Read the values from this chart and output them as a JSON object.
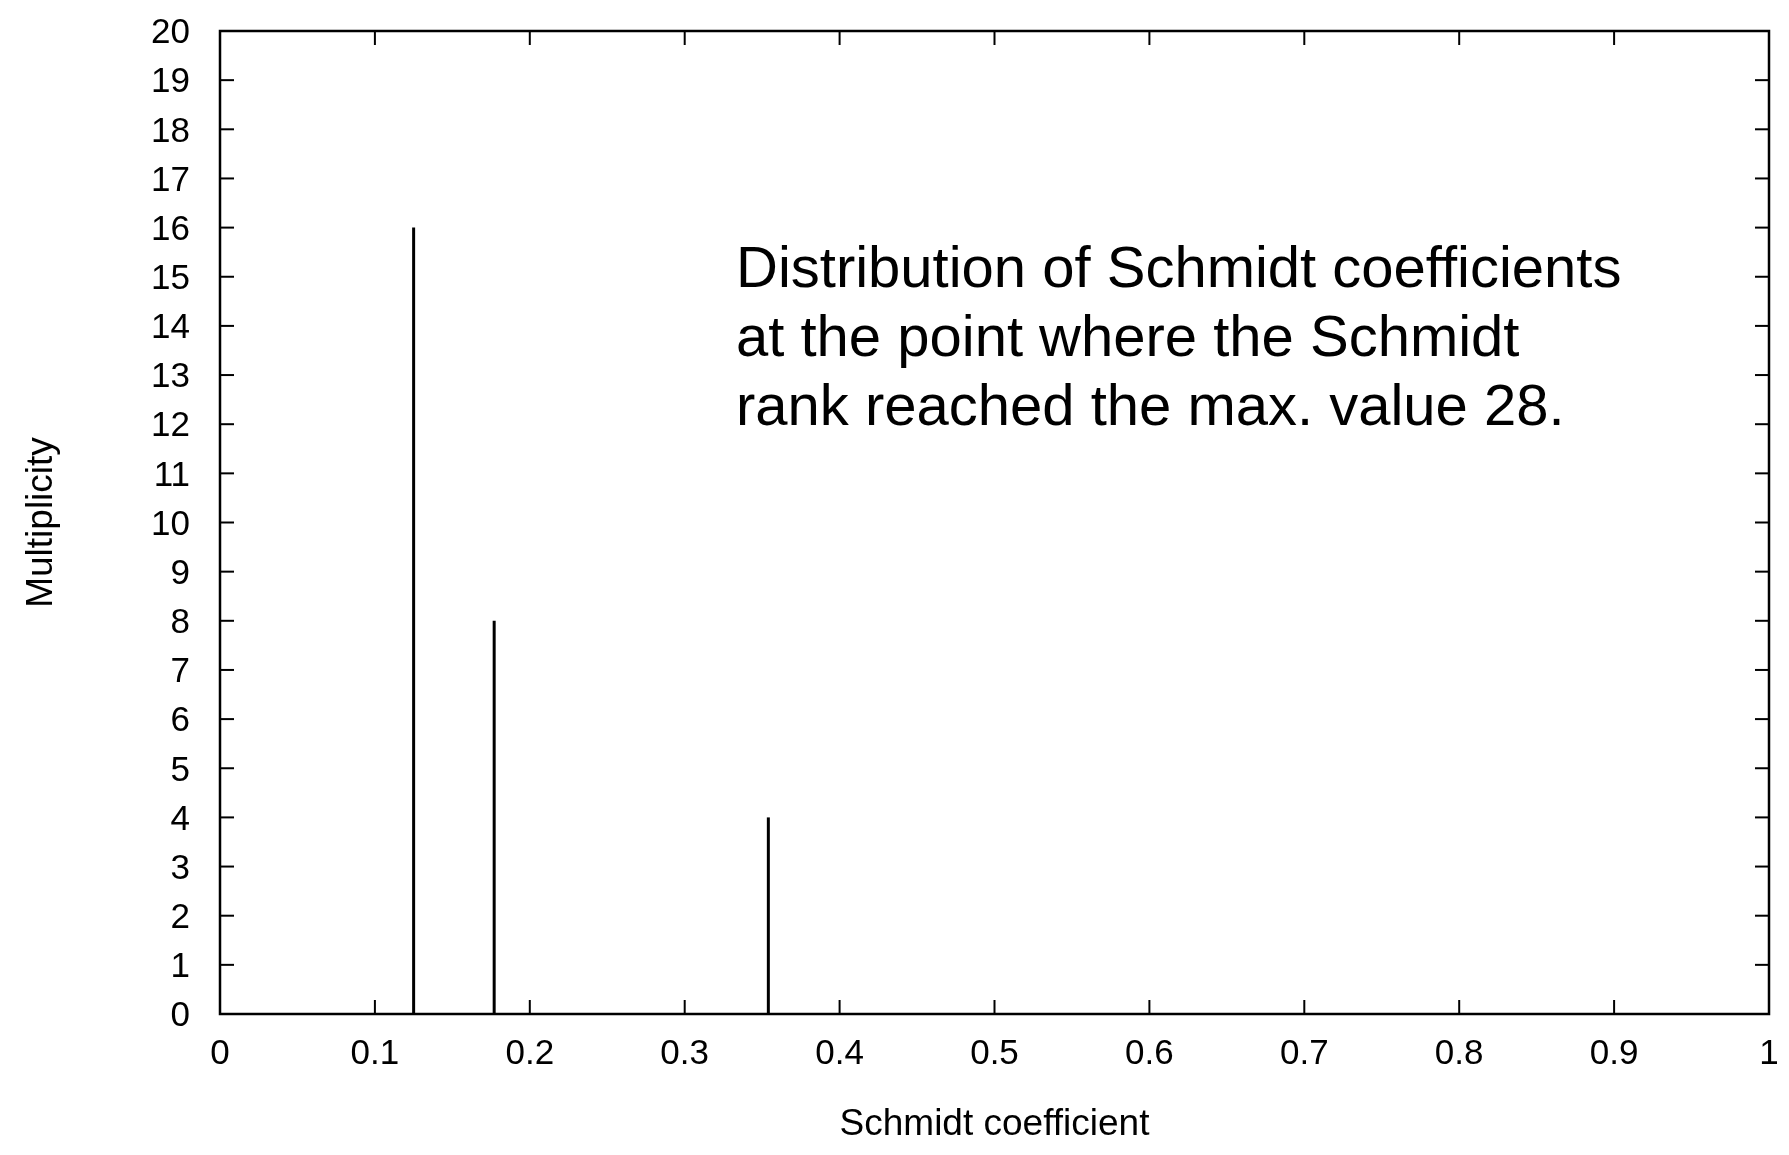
{
  "chart_data": {
    "type": "bar",
    "xlabel": "Schmidt coefficient",
    "ylabel": "Multiplicity",
    "x": [
      0.125,
      0.177,
      0.354
    ],
    "values": [
      16,
      8,
      4
    ],
    "color": "#000000",
    "xlim": [
      0,
      1
    ],
    "xticks": [
      0,
      0.1,
      0.2,
      0.3,
      0.4,
      0.5,
      0.6,
      0.7,
      0.8,
      0.9,
      1
    ],
    "ylim": [
      0,
      20
    ],
    "yticks": [
      0,
      1,
      2,
      3,
      4,
      5,
      6,
      7,
      8,
      9,
      10,
      11,
      12,
      13,
      14,
      15,
      16,
      17,
      18,
      19,
      20
    ],
    "grid": false,
    "annotations": [
      "Distribution of Schmidt coefficients\nat the point where the Schmidt\nrank reached the max. value 28."
    ]
  }
}
